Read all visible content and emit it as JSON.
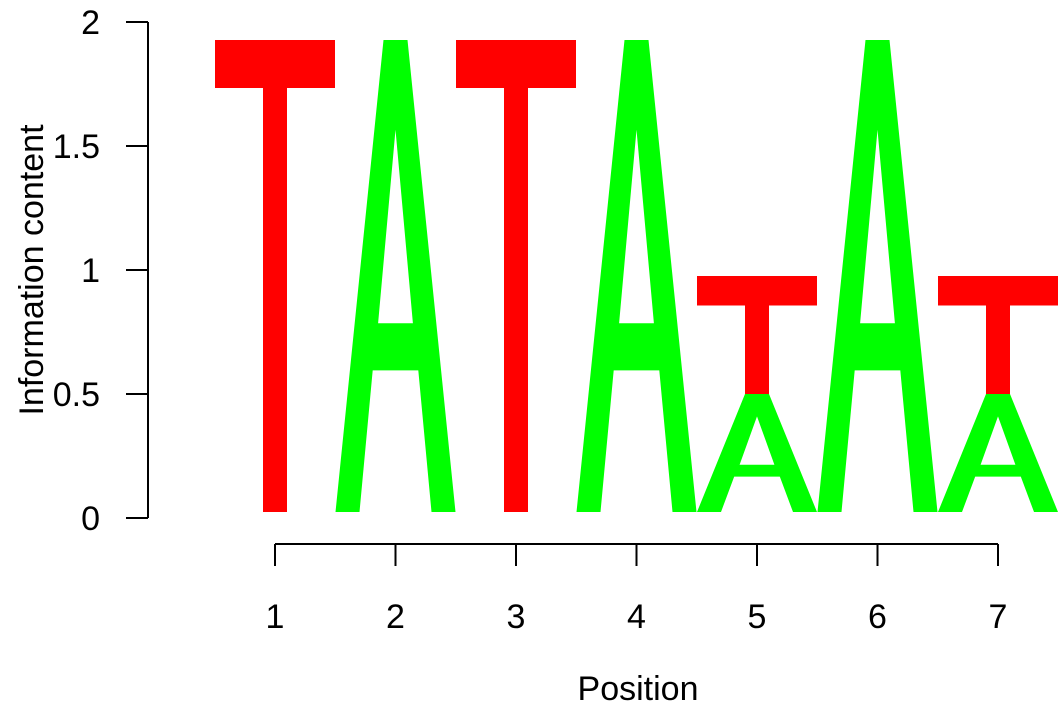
{
  "chart_data": {
    "type": "sequence-logo",
    "xlabel": "Position",
    "ylabel": "Information content",
    "ylim": [
      0,
      2
    ],
    "y_ticks": [
      "0",
      "0.5",
      "1",
      "1.5",
      "2"
    ],
    "positions": [
      "1",
      "2",
      "3",
      "4",
      "5",
      "6",
      "7"
    ],
    "colors": {
      "A": "#00ff00",
      "T": "#ff0000"
    },
    "stacks": [
      {
        "position": "1",
        "letters": [
          {
            "letter": "T",
            "height": 2.0
          }
        ]
      },
      {
        "position": "2",
        "letters": [
          {
            "letter": "A",
            "height": 2.0
          }
        ]
      },
      {
        "position": "3",
        "letters": [
          {
            "letter": "T",
            "height": 2.0
          }
        ]
      },
      {
        "position": "4",
        "letters": [
          {
            "letter": "A",
            "height": 2.0
          }
        ]
      },
      {
        "position": "5",
        "letters": [
          {
            "letter": "A",
            "height": 0.5
          },
          {
            "letter": "T",
            "height": 0.5
          }
        ]
      },
      {
        "position": "6",
        "letters": [
          {
            "letter": "A",
            "height": 2.0
          }
        ]
      },
      {
        "position": "7",
        "letters": [
          {
            "letter": "A",
            "height": 0.5
          },
          {
            "letter": "T",
            "height": 0.5
          }
        ]
      }
    ]
  }
}
